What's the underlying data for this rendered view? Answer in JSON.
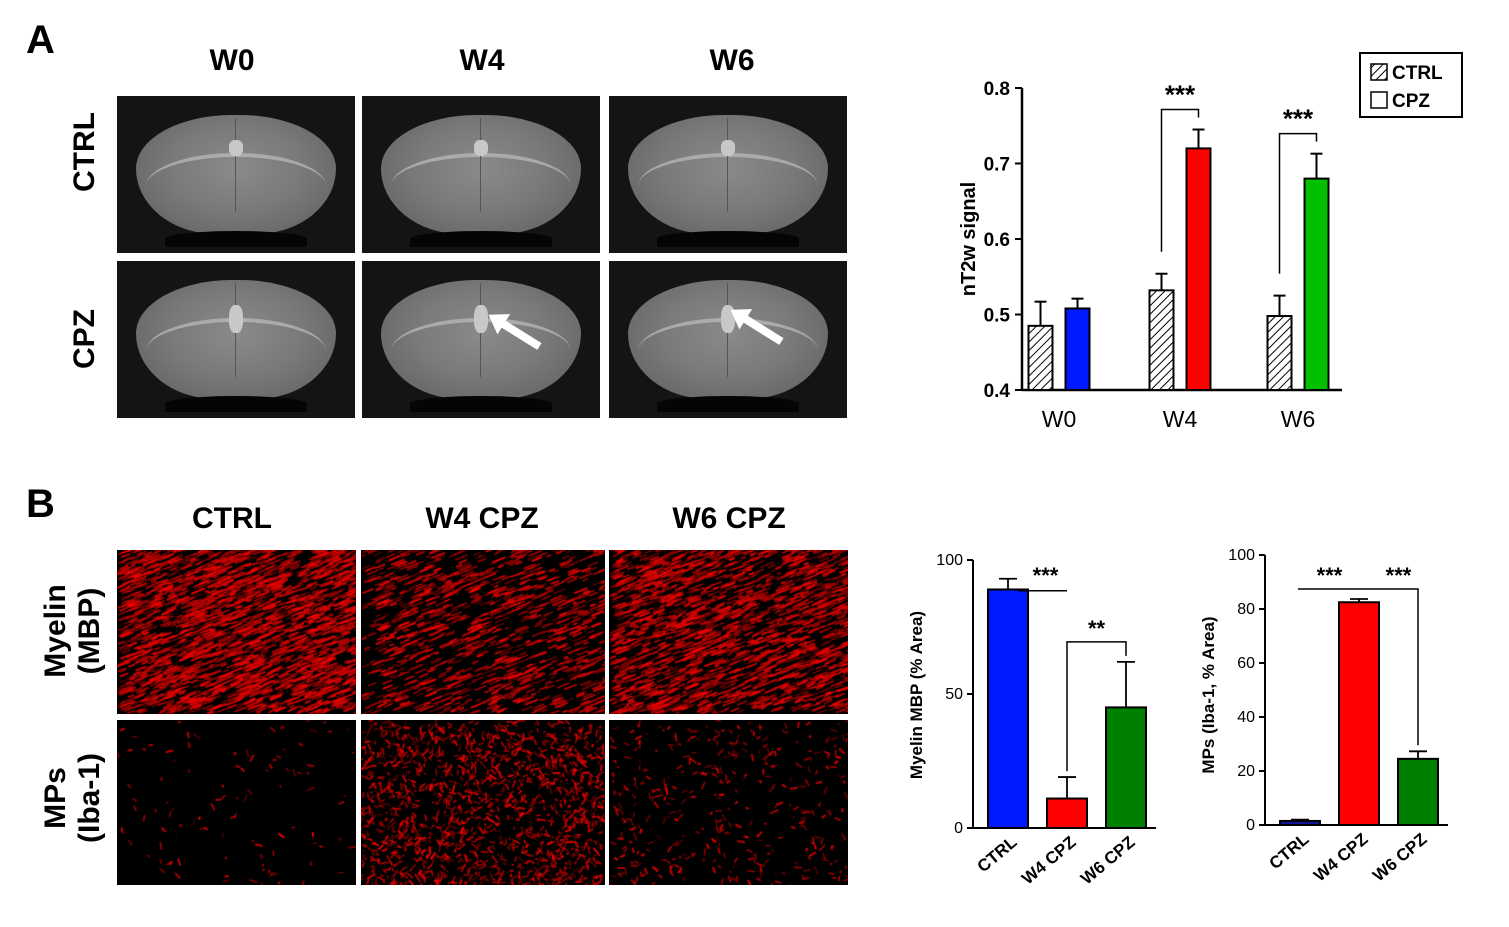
{
  "panel_a": {
    "letter": "A",
    "col_headers": [
      "W0",
      "W4",
      "W6"
    ],
    "row_headers": [
      "CTRL",
      "CPZ"
    ]
  },
  "panel_b": {
    "letter": "B",
    "col_headers": [
      "CTRL",
      "W4 CPZ",
      "W6 CPZ"
    ],
    "row_headers": [
      {
        "line1": "Myelin",
        "line2": "(MBP)"
      },
      {
        "line1": "MPs",
        "line2": "(Iba-1)"
      }
    ],
    "myelin_density": [
      0.95,
      0.45,
      0.75
    ],
    "iba_density": [
      0.06,
      0.9,
      0.22
    ]
  },
  "legend": {
    "items": [
      "CTRL",
      "CPZ"
    ]
  },
  "colors": {
    "blue": "#0019ff",
    "red": "#ff0000",
    "green": "#00c000",
    "dark_green": "#008000",
    "navy": "#14149a"
  },
  "chart_data": [
    {
      "type": "bar",
      "ylabel": "nT2w signal",
      "categories": [
        "W0",
        "W4",
        "W6"
      ],
      "ylim": [
        0.4,
        0.8
      ],
      "yticks": [
        "0.4",
        "0.5",
        "0.6",
        "0.7",
        "0.8"
      ],
      "series": [
        {
          "name": "CTRL",
          "values": [
            0.485,
            0.532,
            0.498
          ],
          "errors": [
            0.032,
            0.022,
            0.027
          ],
          "fill": "hatched"
        },
        {
          "name": "CPZ",
          "values": [
            0.508,
            0.72,
            0.68
          ],
          "errors": [
            0.013,
            0.025,
            0.033
          ],
          "colors": [
            "#0019ff",
            "#ff0000",
            "#00c000"
          ]
        }
      ],
      "annotations": [
        {
          "between": "W4",
          "text": "***"
        },
        {
          "between": "W6",
          "text": "***"
        }
      ]
    },
    {
      "type": "bar",
      "ylabel": "Myelin MBP (% Area)",
      "categories": [
        "CTRL",
        "W4 CPZ",
        "W6 CPZ"
      ],
      "values": [
        89,
        11,
        45
      ],
      "errors": [
        4,
        8,
        17
      ],
      "colors": [
        "#0019ff",
        "#ff0000",
        "#008000"
      ],
      "ylim": [
        0,
        100
      ],
      "yticks": [
        "0",
        "50",
        "100"
      ],
      "annotations": [
        {
          "from": "CTRL",
          "to": "W4 CPZ",
          "text": "***"
        },
        {
          "from": "W4 CPZ",
          "to": "W6 CPZ",
          "text": "**"
        }
      ]
    },
    {
      "type": "bar",
      "ylabel": "MPs (Iba-1, % Area)",
      "categories": [
        "CTRL",
        "W4 CPZ",
        "W6 CPZ"
      ],
      "values": [
        1.5,
        82.5,
        24.5
      ],
      "errors": [
        0.5,
        1.2,
        2.8
      ],
      "colors": [
        "#14149a",
        "#ff0000",
        "#008000"
      ],
      "ylim": [
        0,
        100
      ],
      "yticks": [
        "0",
        "20",
        "40",
        "60",
        "80",
        "100"
      ],
      "annotations": [
        {
          "from": "CTRL",
          "to": "W4 CPZ",
          "text": "***"
        },
        {
          "from": "W4 CPZ",
          "to": "W6 CPZ",
          "text": "***"
        }
      ]
    }
  ]
}
